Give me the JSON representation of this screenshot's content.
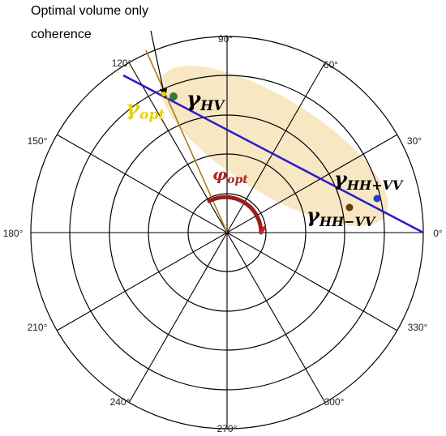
{
  "annotation": {
    "line1": "Optimal volume only",
    "line2": "coherence"
  },
  "angle_labels": [
    "90°",
    "60°",
    "30°",
    "0°",
    "330°",
    "300°",
    "270°",
    "240°",
    "210°",
    "180°",
    "150°",
    "120°"
  ],
  "points": {
    "hv": {
      "base": "γ",
      "sub": "HV"
    },
    "opt": {
      "base": "γ",
      "sub": "opt"
    },
    "hh_plus_vv": {
      "base": "γ",
      "sub": "HH+VV"
    },
    "hh_minus_vv": {
      "base": "γ",
      "sub": "HH−VV"
    },
    "phi": {
      "base": "φ",
      "sub": "opt"
    }
  },
  "colors": {
    "coherence_line": "#2a1acc",
    "optimal_line": "#b07a1a",
    "region_fill": "#f6e3b8",
    "arc": "#9b1b1b",
    "hv_point": "#2e7d32",
    "hh_plus_vv_point": "#1f3fbf",
    "hh_minus_vv_point": "#6b3a10",
    "opt_label": "#e5d400"
  }
}
